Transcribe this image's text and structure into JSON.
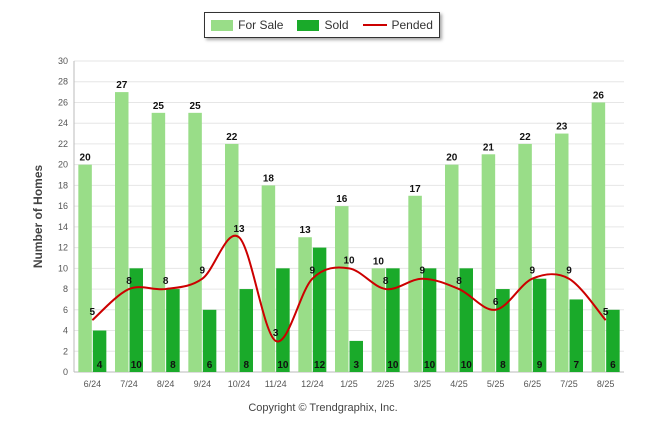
{
  "legend": {
    "for_sale": "For Sale",
    "sold": "Sold",
    "pended": "Pended"
  },
  "colors": {
    "for_sale": "#99dd88",
    "sold": "#1aaa2a",
    "pended": "#cc0000"
  },
  "copyright": "Copyright © Trendgraphix, Inc.",
  "chart_data": {
    "type": "bar",
    "ylabel": "Number of Homes",
    "ylim": [
      0,
      30
    ],
    "yticks": [
      0,
      2,
      4,
      6,
      8,
      10,
      12,
      14,
      16,
      18,
      20,
      22,
      24,
      26,
      28,
      30
    ],
    "grid": true,
    "legend_position": "top-center",
    "categories": [
      "6/24",
      "7/24",
      "8/24",
      "9/24",
      "10/24",
      "11/24",
      "12/24",
      "1/25",
      "2/25",
      "3/25",
      "4/25",
      "5/25",
      "6/25",
      "7/25",
      "8/25"
    ],
    "series": [
      {
        "name": "For Sale",
        "type": "bar",
        "values": [
          20,
          27,
          25,
          25,
          22,
          18,
          13,
          16,
          10,
          17,
          20,
          21,
          22,
          23,
          26
        ]
      },
      {
        "name": "Sold",
        "type": "bar",
        "values": [
          4,
          10,
          8,
          6,
          8,
          10,
          12,
          3,
          10,
          10,
          10,
          8,
          9,
          7,
          6
        ]
      },
      {
        "name": "Pended",
        "type": "line",
        "values": [
          5,
          8,
          8,
          9,
          13,
          3,
          9,
          10,
          8,
          9,
          8,
          6,
          9,
          9,
          5
        ]
      }
    ]
  }
}
